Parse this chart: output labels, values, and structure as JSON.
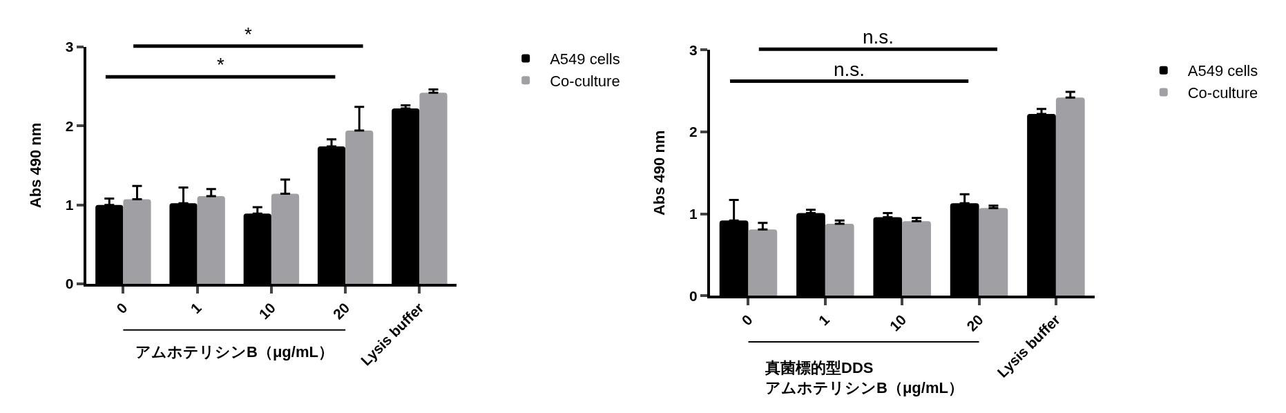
{
  "chart_data": [
    {
      "type": "bar",
      "categories": [
        "0",
        "1",
        "10",
        "20",
        "Lysis buffer"
      ],
      "ylabel": "Abs 490 nm",
      "xlabel": "アムホテリシンB（μg/mL）",
      "ylim": [
        0,
        3
      ],
      "yticks": [
        0,
        1,
        2,
        3
      ],
      "legend": "top right",
      "series": [
        {
          "name": "A549 cells",
          "color": "#000000",
          "values": [
            1.0,
            1.02,
            0.89,
            1.74,
            2.22
          ],
          "errors": [
            [
              1.0,
              1.08
            ],
            [
              1.02,
              1.22
            ],
            [
              0.89,
              0.97
            ],
            [
              1.74,
              1.83
            ],
            [
              2.22,
              2.26
            ]
          ]
        },
        {
          "name": "Co-culture",
          "color": "#a0a0a4",
          "values": [
            1.07,
            1.11,
            1.14,
            1.94,
            2.42
          ],
          "errors": [
            [
              1.07,
              1.24
            ],
            [
              1.11,
              1.2
            ],
            [
              1.14,
              1.32
            ],
            [
              1.94,
              2.24
            ],
            [
              2.42,
              2.46
            ]
          ]
        }
      ],
      "annotations": [
        "*",
        "*"
      ]
    },
    {
      "type": "bar",
      "categories": [
        "0",
        "1",
        "10",
        "20",
        "Lysis buffer"
      ],
      "ylabel": "Abs 490 nm",
      "xlabel": "真菌標的型DDS\nアムホテリシンB（μg/mL）",
      "ylim": [
        0,
        3
      ],
      "yticks": [
        0,
        1,
        2,
        3
      ],
      "legend": "top right",
      "series": [
        {
          "name": "A549 cells",
          "color": "#000000",
          "values": [
            0.92,
            1.01,
            0.96,
            1.13,
            2.22
          ],
          "errors": [
            [
              0.92,
              1.17
            ],
            [
              1.01,
              1.05
            ],
            [
              0.96,
              1.01
            ],
            [
              1.13,
              1.24
            ],
            [
              2.22,
              2.28
            ]
          ]
        },
        {
          "name": "Co-culture",
          "color": "#a0a0a4",
          "values": [
            0.81,
            0.88,
            0.91,
            1.07,
            2.42
          ],
          "errors": [
            [
              0.81,
              0.89
            ],
            [
              0.88,
              0.92
            ],
            [
              0.91,
              0.95
            ],
            [
              1.07,
              1.1
            ],
            [
              2.42,
              2.49
            ]
          ]
        }
      ],
      "annotations": [
        "n.s.",
        "n.s."
      ]
    }
  ]
}
